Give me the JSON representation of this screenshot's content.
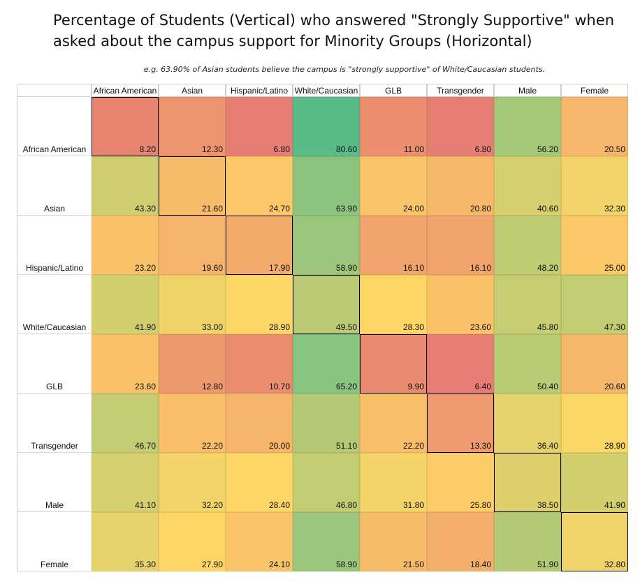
{
  "chart_data": {
    "type": "heatmap",
    "title": "Percentage of Students (Vertical) who answered \"Strongly Supportive\" when\nasked about the campus support for Minority Groups (Horizontal)",
    "subtitle": "e.g. 63.90% of Asian students believe the campus is \"strongly supportive\" of White/Caucasian students.",
    "columns": [
      "African American",
      "Asian",
      "Hispanic/Latino",
      "White/Caucasian",
      "GLB",
      "Transgender",
      "Male",
      "Female"
    ],
    "rows": [
      "African American",
      "Asian",
      "Hispanic/Latino",
      "White/Caucasian",
      "GLB",
      "Transgender",
      "Male",
      "Female"
    ],
    "values": [
      [
        8.2,
        12.3,
        6.8,
        80.6,
        11.0,
        6.8,
        56.2,
        20.5
      ],
      [
        43.3,
        21.6,
        24.7,
        63.9,
        24.0,
        20.8,
        40.6,
        32.3
      ],
      [
        23.2,
        19.6,
        17.9,
        58.9,
        16.1,
        16.1,
        48.2,
        25.0
      ],
      [
        41.9,
        33.0,
        28.9,
        49.5,
        28.3,
        23.6,
        45.8,
        47.3
      ],
      [
        23.6,
        12.8,
        10.7,
        65.2,
        9.9,
        6.4,
        50.4,
        20.6
      ],
      [
        46.7,
        22.2,
        20.0,
        51.1,
        22.2,
        13.3,
        36.4,
        28.9
      ],
      [
        41.1,
        32.2,
        28.4,
        46.8,
        31.8,
        25.8,
        38.5,
        41.9
      ],
      [
        35.3,
        27.9,
        24.1,
        58.9,
        21.5,
        18.4,
        51.9,
        32.8
      ]
    ],
    "color_scale": {
      "low": "#e67c73",
      "mid": "#ffd666",
      "high": "#57bb8a"
    },
    "diagonal_border_color": "#000000"
  }
}
